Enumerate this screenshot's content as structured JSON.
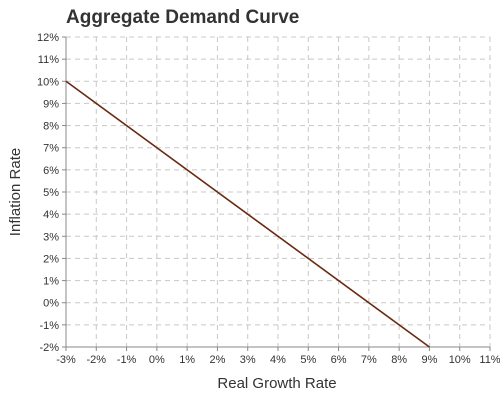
{
  "chart_data": {
    "type": "line",
    "title": "Aggregate Demand Curve",
    "xlabel": "Real Growth Rate",
    "ylabel": "Inflation Rate",
    "xlim": [
      -3,
      11
    ],
    "ylim": [
      -2,
      12
    ],
    "x_ticks": [
      "-3%",
      "-2%",
      "-1%",
      "0%",
      "1%",
      "2%",
      "3%",
      "4%",
      "5%",
      "6%",
      "7%",
      "8%",
      "9%",
      "10%",
      "11%"
    ],
    "y_ticks": [
      "-2%",
      "-1%",
      "0%",
      "1%",
      "2%",
      "3%",
      "4%",
      "5%",
      "6%",
      "7%",
      "8%",
      "9%",
      "10%",
      "11%",
      "12%"
    ],
    "grid": true,
    "series": [
      {
        "x": [
          -3,
          9
        ],
        "y": [
          10,
          -2
        ],
        "color": "#6b2a10"
      }
    ]
  }
}
